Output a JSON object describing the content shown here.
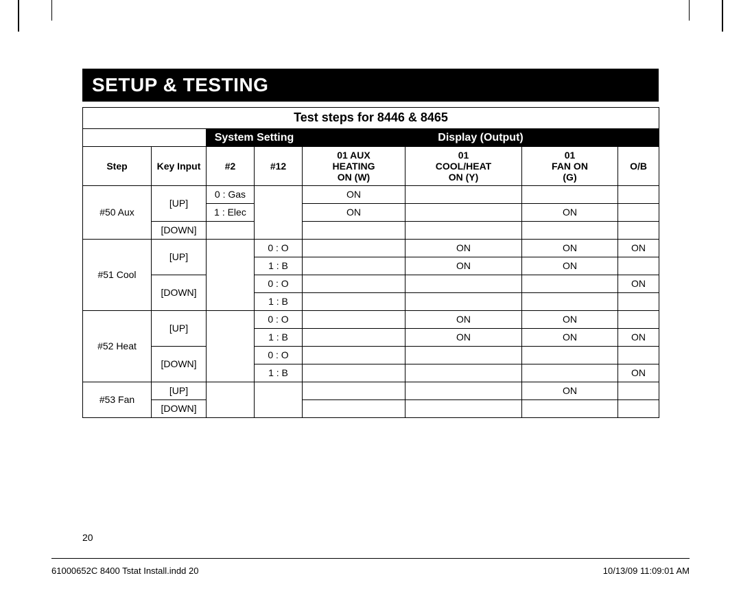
{
  "section_title": "SETUP & TESTING",
  "table": {
    "title": "Test steps for 8446 & 8465",
    "group_headers": {
      "system_setting": "System Setting",
      "display_output": "Display (Output)"
    },
    "columns": {
      "step": "Step",
      "key_input": "Key Input",
      "n2": "#2",
      "n12": "#12",
      "aux": "01 AUX\nHEATING\nON (W)",
      "cool": "01\nCOOL/HEAT\nON (Y)",
      "fan": "01\nFAN ON\n(G)",
      "ob": "O/B"
    },
    "rows": [
      {
        "step": "#50 Aux",
        "step_rowspan": 3,
        "key": "[UP]",
        "key_rowspan": 2,
        "n2": "0 : Gas",
        "n12_rowspan": 3,
        "aux": "ON",
        "cool": "",
        "fan": "",
        "ob": ""
      },
      {
        "n2": "1 : Elec",
        "aux": "ON",
        "cool": "",
        "fan": "ON",
        "ob": ""
      },
      {
        "key": "[DOWN]",
        "key_rowspan": 1,
        "n2": "",
        "aux": "",
        "cool": "",
        "fan": "",
        "ob": ""
      },
      {
        "step": "#51 Cool",
        "step_rowspan": 4,
        "key": "[UP]",
        "key_rowspan": 2,
        "n2_rowspan": 4,
        "n12": "0 : O",
        "aux": "",
        "cool": "ON",
        "fan": "ON",
        "ob": "ON"
      },
      {
        "n12": "1 : B",
        "aux": "",
        "cool": "ON",
        "fan": "ON",
        "ob": ""
      },
      {
        "key": "[DOWN]",
        "key_rowspan": 2,
        "n12": "0 : O",
        "aux": "",
        "cool": "",
        "fan": "",
        "ob": "ON"
      },
      {
        "n12": "1 : B",
        "aux": "",
        "cool": "",
        "fan": "",
        "ob": ""
      },
      {
        "step": "#52 Heat",
        "step_rowspan": 4,
        "key": "[UP]",
        "key_rowspan": 2,
        "n2_rowspan": 4,
        "n12": "0 : O",
        "aux": "",
        "cool": "ON",
        "fan": "ON",
        "ob": ""
      },
      {
        "n12": "1 : B",
        "aux": "",
        "cool": "ON",
        "fan": "ON",
        "ob": "ON"
      },
      {
        "key": "[DOWN]",
        "key_rowspan": 2,
        "n12": "0 : O",
        "aux": "",
        "cool": "",
        "fan": "",
        "ob": ""
      },
      {
        "n12": "1 : B",
        "aux": "",
        "cool": "",
        "fan": "",
        "ob": "ON"
      },
      {
        "step": "#53 Fan",
        "step_rowspan": 2,
        "key": "[UP]",
        "key_rowspan": 1,
        "n2_rowspan": 2,
        "n12_rowspan": 2,
        "aux": "",
        "cool": "",
        "fan": "ON",
        "ob": ""
      },
      {
        "key": "[DOWN]",
        "key_rowspan": 1,
        "aux": "",
        "cool": "",
        "fan": "",
        "ob": ""
      }
    ]
  },
  "page_number": "20",
  "footer": {
    "left": "61000652C 8400 Tstat Install.indd   20",
    "right": "10/13/09   11:09:01 AM"
  }
}
